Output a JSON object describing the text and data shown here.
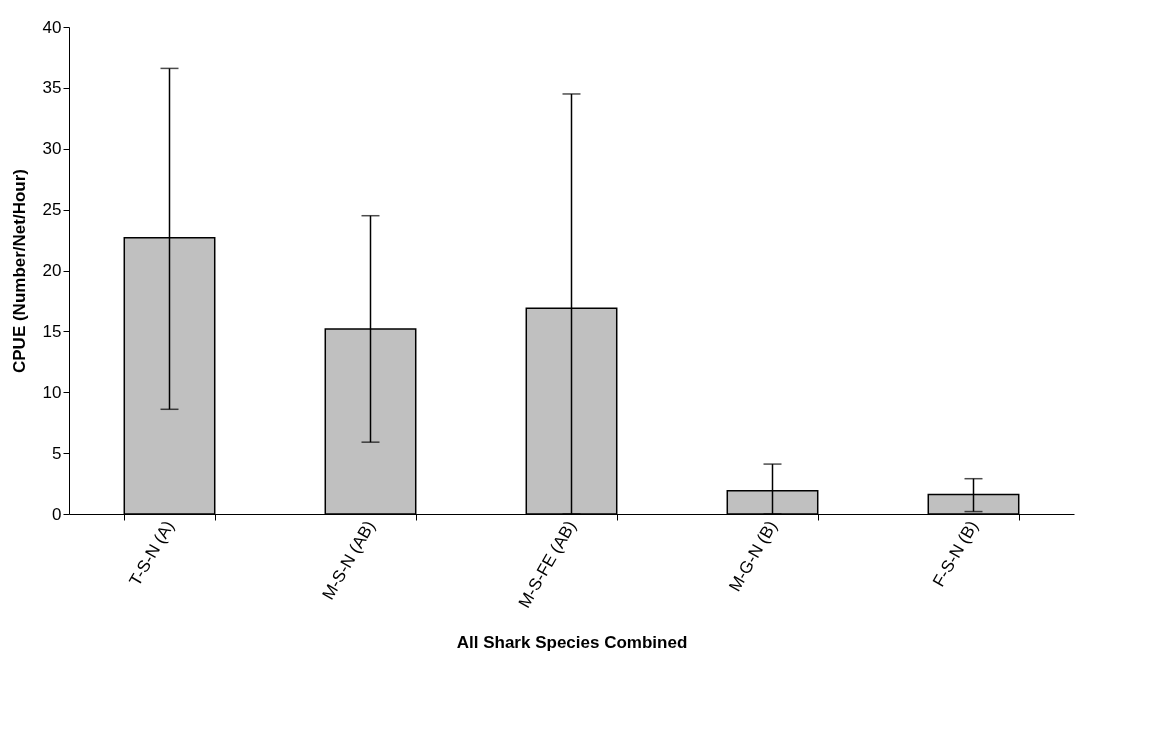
{
  "chart_data": {
    "type": "bar",
    "xlabel": "All Shark Species Combined",
    "ylabel": "CPUE (Number/Net/Hour)",
    "categories": [
      "T-S-N  (A)",
      "M-S-N  (AB)",
      "M-S-FE  (AB)",
      "M-G-N  (B)",
      "F-S-N  (B)"
    ],
    "values": [
      22.7,
      15.2,
      16.9,
      1.9,
      1.6
    ],
    "errors": [
      [
        8.6,
        36.6
      ],
      [
        5.9,
        24.5
      ],
      [
        0,
        34.5
      ],
      [
        0,
        4.1
      ],
      [
        0.2,
        2.9
      ]
    ],
    "color": "#c0c0c0",
    "ylim": [
      0,
      40
    ],
    "yticks": [
      0,
      5,
      10,
      15,
      20,
      25,
      30,
      35,
      40
    ],
    "grid": false
  }
}
